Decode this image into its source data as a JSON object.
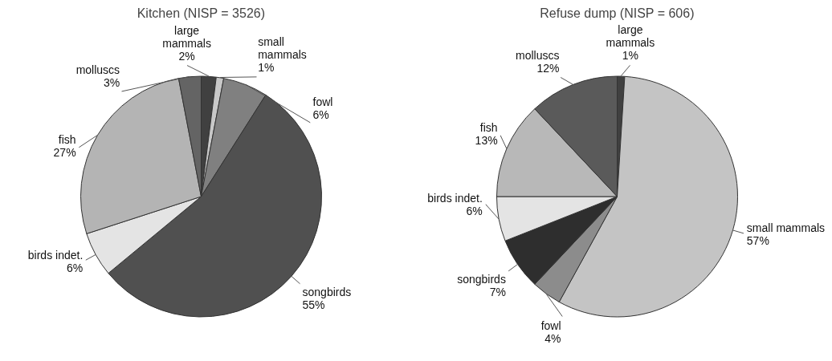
{
  "chart_data": [
    {
      "type": "pie",
      "title": "Kitchen (NISP = 3526)",
      "categories": [
        "large mammals",
        "small mammals",
        "fowl",
        "songbirds",
        "birds indet.",
        "fish",
        "molluscs"
      ],
      "values": [
        2,
        1,
        6,
        55,
        6,
        27,
        3
      ],
      "value_labels": [
        "2%",
        "1%",
        "6%",
        "55%",
        "6%",
        "27%",
        "3%"
      ],
      "colors": [
        "#404040",
        "#c8c8c8",
        "#808080",
        "#505050",
        "#e4e4e4",
        "#b4b4b4",
        "#646464"
      ]
    },
    {
      "type": "pie",
      "title": "Refuse dump (NISP = 606)",
      "categories": [
        "large mammals",
        "small mammals",
        "fowl",
        "songbirds",
        "birds indet.",
        "fish",
        "molluscs"
      ],
      "values": [
        1,
        57,
        4,
        7,
        6,
        13,
        12
      ],
      "value_labels": [
        "1%",
        "57%",
        "4%",
        "7%",
        "6%",
        "13%",
        "12%"
      ],
      "colors": [
        "#404040",
        "#c4c4c4",
        "#8c8c8c",
        "#2e2e2e",
        "#e4e4e4",
        "#b8b8b8",
        "#5a5a5a"
      ]
    }
  ]
}
